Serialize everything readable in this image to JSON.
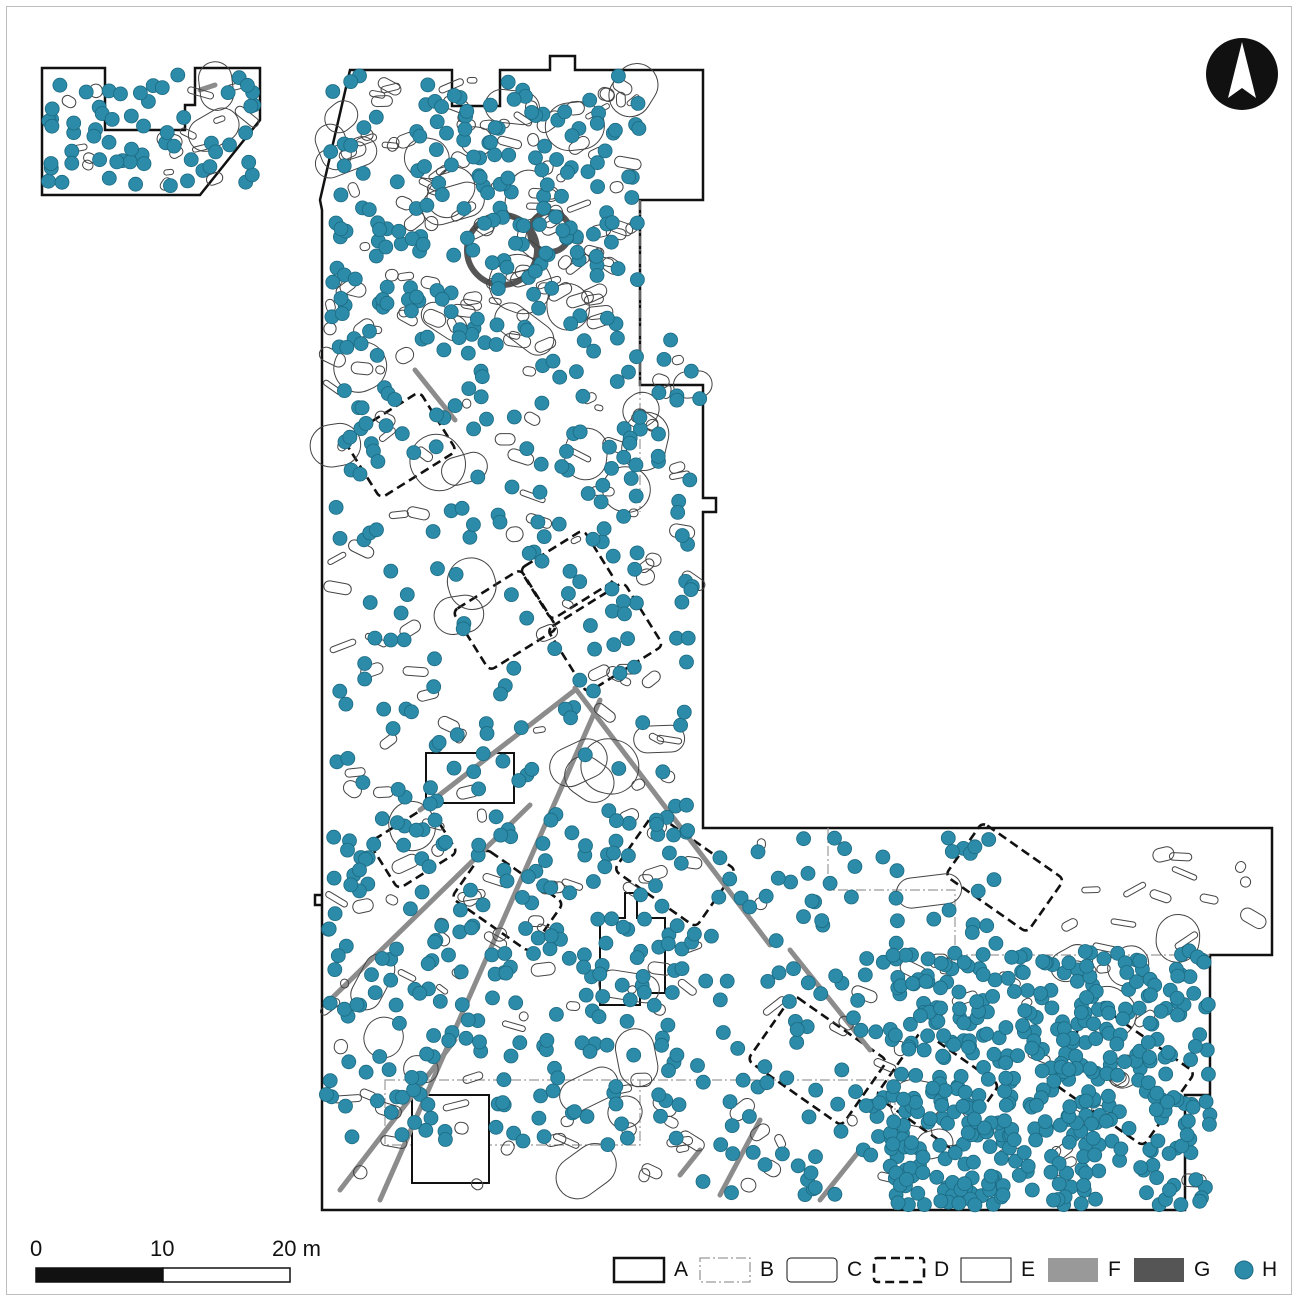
{
  "scale_bar": {
    "labels": [
      "0",
      "10",
      "20 m"
    ]
  },
  "legend": [
    {
      "key": "A",
      "style": "solid-outline"
    },
    {
      "key": "B",
      "style": "dash-dot-outline"
    },
    {
      "key": "C",
      "style": "thin-outline"
    },
    {
      "key": "D",
      "style": "thick-dashed-outline"
    },
    {
      "key": "E",
      "style": "thin-outline"
    },
    {
      "key": "F",
      "style": "fill",
      "color": "#999999"
    },
    {
      "key": "G",
      "style": "fill",
      "color": "#555555"
    },
    {
      "key": "H",
      "style": "dot",
      "color": "#2b8ba8"
    }
  ],
  "north_arrow": {
    "icon": "north-arrow-icon"
  },
  "colors": {
    "find": "#2b8ba8",
    "find_stroke": "#1d6a82",
    "outline": "#111111",
    "gray": "#999999",
    "dark": "#555555"
  }
}
